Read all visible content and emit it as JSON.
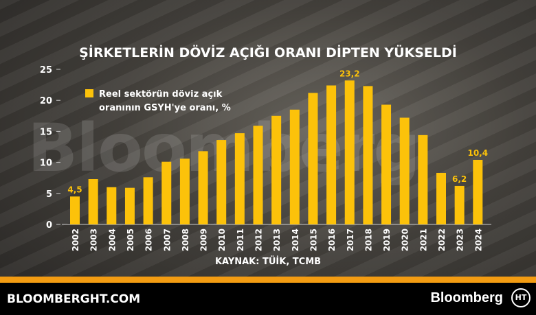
{
  "title": "ŞİRKETLERİN DÖVİZ AÇIĞI ORANI DİPTEN YÜKSELDİ",
  "watermark": "Bloomberg",
  "source": "KAYNAK: TÜİK, TCMB",
  "footer": {
    "site": "BLOOMBERGHT.COM",
    "brand": "Bloomberg",
    "logo": "HT"
  },
  "chart_data": {
    "type": "bar",
    "categories": [
      "2002",
      "2003",
      "2004",
      "2005",
      "2006",
      "2007",
      "2008",
      "2009",
      "2010",
      "2011",
      "2012",
      "2013",
      "2014",
      "2015",
      "2016",
      "2017",
      "2018",
      "2019",
      "2020",
      "2021",
      "2022",
      "2023",
      "2024"
    ],
    "series": [
      {
        "name": "Reel sektörün döviz açık oranının GSYH'ye oranı, %",
        "values": [
          4.5,
          7.3,
          6.0,
          5.9,
          7.6,
          10.1,
          10.6,
          11.8,
          13.6,
          14.7,
          15.9,
          17.5,
          18.5,
          21.2,
          22.4,
          23.2,
          22.3,
          19.3,
          17.2,
          14.4,
          8.3,
          6.2,
          10.4
        ]
      }
    ],
    "data_labels": {
      "2002": "4,5",
      "2017": "23,2",
      "2023": "6,2",
      "2024": "10,4"
    },
    "yticks": [
      "0",
      "5",
      "10",
      "15",
      "20",
      "25"
    ],
    "ylim": [
      0,
      25
    ],
    "legend_lines": [
      "Reel sektörün döviz açık",
      "oranının GSYH'ye oranı, %"
    ],
    "legend_position": "top-left",
    "grid": false,
    "bar_color": "#fcc20a"
  }
}
